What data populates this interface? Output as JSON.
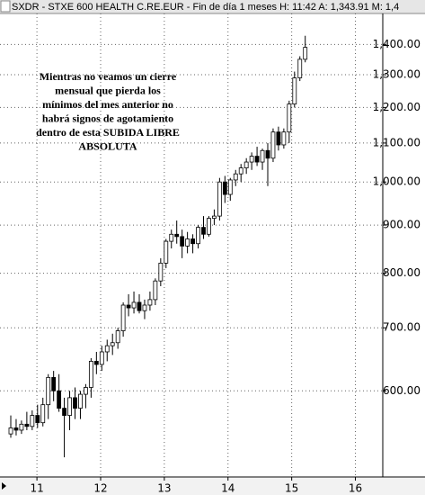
{
  "chart_data": {
    "type": "candlestick",
    "title": "SXDR - STXE 600 HEALTH C.RE.EUR - Fin de día 1 meses  H: 11:42  A: 1,343.91  M: 1,4",
    "annotation": [
      "Mientras no veamos un cierre",
      "mensual que pierda los",
      "mínimos del mes anterior no",
      "habrá signos de agotamiento",
      "dentro de esta SUBIDA LIBRE",
      "ABSOLUTA"
    ],
    "log_scale": true,
    "grid": true,
    "up_color": "#ffffff",
    "down_color": "#000000",
    "ylim": [
      486,
      1510
    ],
    "yticks": [
      {
        "value": 600,
        "label": "600.00"
      },
      {
        "value": 700,
        "label": "700.00"
      },
      {
        "value": 800,
        "label": "800.00"
      },
      {
        "value": 900,
        "label": "900.00"
      },
      {
        "value": 1000,
        "label": "1,000.00"
      },
      {
        "value": 1100,
        "label": "1,100.00"
      },
      {
        "value": 1200,
        "label": "1,200.00"
      },
      {
        "value": 1300,
        "label": "1,300.00"
      },
      {
        "value": 1400,
        "label": "1,400.00"
      }
    ],
    "xlim": [
      2010.42,
      2016.43
    ],
    "xticks": [
      {
        "value": 2011,
        "label": "11"
      },
      {
        "value": 2012,
        "label": "12"
      },
      {
        "value": 2013,
        "label": "13"
      },
      {
        "value": 2014,
        "label": "14"
      },
      {
        "value": 2015,
        "label": "15"
      },
      {
        "value": 2016,
        "label": "16"
      }
    ],
    "open": [
      540,
      548,
      545,
      553,
      550,
      565,
      555,
      580,
      620,
      600,
      575,
      565,
      590,
      575,
      595,
      605,
      645,
      640,
      660,
      670,
      675,
      695,
      740,
      735,
      745,
      730,
      740,
      750,
      785,
      820,
      865,
      880,
      875,
      855,
      870,
      860,
      895,
      880,
      915,
      920,
      1000,
      970,
      1005,
      1020,
      1035,
      1050,
      1065,
      1050,
      1080,
      1060,
      1130,
      1095,
      1130,
      1210,
      1290,
      1350
    ],
    "high": [
      565,
      560,
      558,
      570,
      572,
      580,
      590,
      625,
      630,
      625,
      590,
      600,
      605,
      600,
      610,
      650,
      660,
      670,
      680,
      690,
      700,
      745,
      760,
      765,
      760,
      750,
      765,
      790,
      830,
      870,
      890,
      910,
      890,
      885,
      880,
      900,
      920,
      920,
      935,
      1010,
      1015,
      1010,
      1030,
      1045,
      1060,
      1075,
      1090,
      1085,
      1100,
      1140,
      1145,
      1140,
      1220,
      1310,
      1360,
      1430
    ],
    "low": [
      535,
      538,
      540,
      545,
      545,
      548,
      550,
      560,
      585,
      570,
      510,
      545,
      560,
      560,
      575,
      590,
      625,
      630,
      645,
      655,
      665,
      685,
      720,
      725,
      725,
      715,
      730,
      740,
      775,
      810,
      850,
      860,
      830,
      840,
      840,
      850,
      870,
      875,
      900,
      910,
      950,
      955,
      990,
      1000,
      1020,
      1030,
      1040,
      1030,
      990,
      1050,
      1080,
      1085,
      1100,
      1200,
      1280,
      1340
    ],
    "close": [
      548,
      545,
      553,
      550,
      565,
      555,
      580,
      620,
      600,
      575,
      565,
      590,
      575,
      595,
      605,
      645,
      640,
      660,
      670,
      675,
      695,
      740,
      735,
      745,
      730,
      740,
      750,
      785,
      820,
      865,
      880,
      875,
      855,
      870,
      860,
      895,
      880,
      915,
      920,
      1000,
      970,
      1005,
      1020,
      1035,
      1050,
      1065,
      1050,
      1080,
      1060,
      1130,
      1095,
      1130,
      1210,
      1290,
      1350,
      1390
    ]
  }
}
